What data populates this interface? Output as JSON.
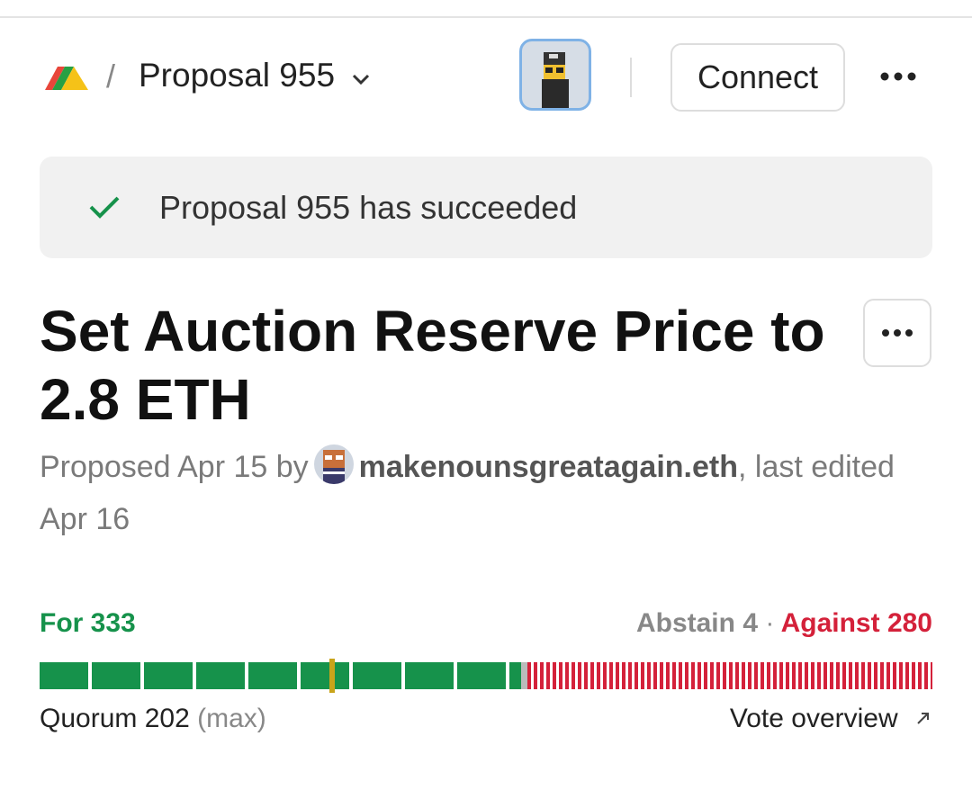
{
  "header": {
    "breadcrumb_separator": "/",
    "proposal_menu": "Proposal 955",
    "connect_button": "Connect"
  },
  "status_banner": {
    "text": "Proposal 955 has succeeded"
  },
  "proposal": {
    "title": "Set Auction Reserve Price to 2.8 ETH",
    "meta_prefix": "Proposed Apr 15 by",
    "author": "makenounsgreatagain.eth",
    "meta_suffix": ", last edited Apr 16"
  },
  "votes": {
    "for_label": "For",
    "for": 333,
    "abstain_label": "Abstain",
    "abstain": 4,
    "separator": "·",
    "against_label": "Against",
    "against": 280,
    "quorum_label": "Quorum",
    "quorum": 202,
    "quorum_note": "(max)",
    "overview_link": "Vote overview"
  }
}
